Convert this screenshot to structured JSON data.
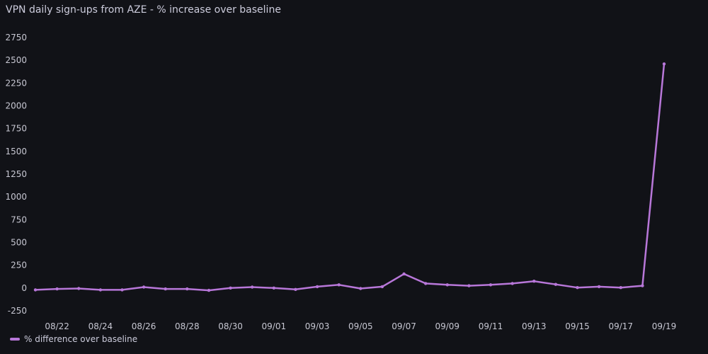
{
  "panel": {
    "title": "VPN daily sign-ups from AZE - % increase over baseline"
  },
  "legend": {
    "label": "% difference over baseline",
    "color": "#b877d9"
  },
  "chart_data": {
    "type": "line",
    "title": "VPN daily sign-ups from AZE - % increase over baseline",
    "xlabel": "",
    "ylabel": "",
    "ylim": [
      -250,
      2750
    ],
    "yticks": [
      -250,
      0,
      250,
      500,
      750,
      1000,
      1250,
      1500,
      1750,
      2000,
      2250,
      2500,
      2750
    ],
    "x_tick_labels": [
      "08/22",
      "08/24",
      "08/26",
      "08/28",
      "08/30",
      "09/01",
      "09/03",
      "09/05",
      "09/07",
      "09/09",
      "09/11",
      "09/13",
      "09/15",
      "09/17",
      "09/19"
    ],
    "grid": false,
    "legend_position": "bottom-left",
    "series": [
      {
        "name": "% difference over baseline",
        "color": "#b877d9",
        "points": [
          {
            "x": "08/21",
            "y": -20
          },
          {
            "x": "08/22",
            "y": -10
          },
          {
            "x": "08/23",
            "y": -5
          },
          {
            "x": "08/24",
            "y": -20
          },
          {
            "x": "08/25",
            "y": -20
          },
          {
            "x": "08/26",
            "y": 10
          },
          {
            "x": "08/27",
            "y": -10
          },
          {
            "x": "08/28",
            "y": -10
          },
          {
            "x": "08/29",
            "y": -25
          },
          {
            "x": "08/30",
            "y": 0
          },
          {
            "x": "08/31",
            "y": 10
          },
          {
            "x": "09/01",
            "y": 0
          },
          {
            "x": "09/02",
            "y": -15
          },
          {
            "x": "09/03",
            "y": 15
          },
          {
            "x": "09/04",
            "y": 35
          },
          {
            "x": "09/05",
            "y": -5
          },
          {
            "x": "09/06",
            "y": 15
          },
          {
            "x": "09/07",
            "y": 155
          },
          {
            "x": "09/08",
            "y": 50
          },
          {
            "x": "09/09",
            "y": 35
          },
          {
            "x": "09/10",
            "y": 25
          },
          {
            "x": "09/11",
            "y": 35
          },
          {
            "x": "09/12",
            "y": 50
          },
          {
            "x": "09/13",
            "y": 75
          },
          {
            "x": "09/14",
            "y": 40
          },
          {
            "x": "09/15",
            "y": 5
          },
          {
            "x": "09/16",
            "y": 15
          },
          {
            "x": "09/17",
            "y": 5
          },
          {
            "x": "09/18",
            "y": 25
          },
          {
            "x": "09/19",
            "y": 2460
          }
        ]
      }
    ]
  }
}
